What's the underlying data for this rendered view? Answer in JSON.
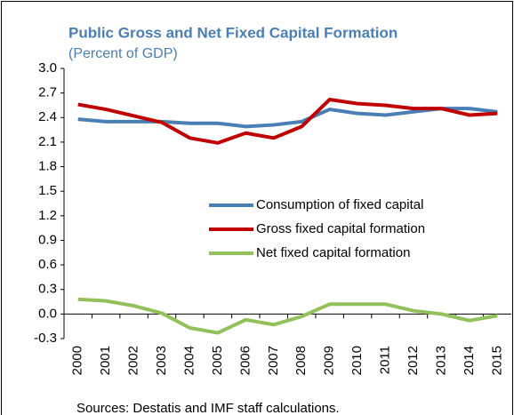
{
  "chart_data": {
    "type": "line",
    "title": "Public Gross and Net Fixed Capital Formation",
    "subtitle": "(Percent of GDP)",
    "source": "Sources: Destatis and IMF staff calculations.",
    "categories": [
      "2000",
      "2001",
      "2002",
      "2003",
      "2004",
      "2005",
      "2006",
      "2007",
      "2008",
      "2009",
      "2010",
      "2011",
      "2012",
      "2013",
      "2014",
      "2015"
    ],
    "series": [
      {
        "name": "Consumption of fixed capital",
        "color": "#4a7fb5",
        "values": [
          2.38,
          2.35,
          2.35,
          2.35,
          2.33,
          2.33,
          2.29,
          2.31,
          2.35,
          2.5,
          2.45,
          2.43,
          2.47,
          2.51,
          2.51,
          2.47
        ]
      },
      {
        "name": "Gross fixed capital formation",
        "color": "#c00000",
        "values": [
          2.56,
          2.5,
          2.42,
          2.34,
          2.15,
          2.09,
          2.21,
          2.15,
          2.29,
          2.62,
          2.57,
          2.55,
          2.51,
          2.51,
          2.43,
          2.45
        ]
      },
      {
        "name": "Net fixed capital formation",
        "color": "#92c05a",
        "values": [
          0.18,
          0.16,
          0.1,
          0.01,
          -0.17,
          -0.23,
          -0.07,
          -0.13,
          -0.03,
          0.12,
          0.12,
          0.12,
          0.04,
          0.0,
          -0.08,
          -0.02
        ]
      }
    ],
    "ylim": [
      -0.3,
      3.0
    ],
    "yticks": [
      {
        "value": 3.0,
        "label": "3.0"
      },
      2.7,
      2.4,
      2.1,
      1.8,
      1.5,
      1.2,
      0.9,
      0.6,
      0.3,
      {
        "value": 0,
        "label": "0.0"
      },
      -0.3
    ],
    "grid": false,
    "legend": "center-right"
  }
}
